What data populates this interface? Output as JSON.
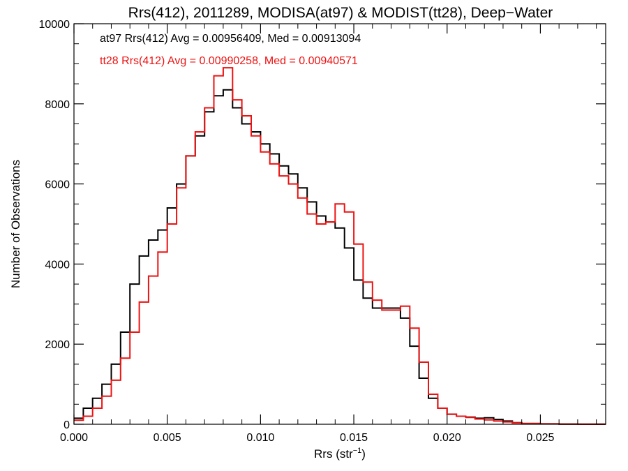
{
  "chart_data": {
    "type": "line",
    "title": "Rrs(412), 2011289, MODISA(at97) & MODIST(tt28), Deep−Water",
    "xlabel": "Rrs (str",
    "xlabel_sup": "−1",
    "xlabel_end": ")",
    "ylabel": "Number of Observations",
    "xlim": [
      0.0,
      0.0285
    ],
    "ylim": [
      0,
      10000
    ],
    "xticks": [
      0.0,
      0.005,
      0.01,
      0.015,
      0.02,
      0.025
    ],
    "xtick_labels": [
      "0.000",
      "0.005",
      "0.010",
      "0.015",
      "0.020",
      "0.025"
    ],
    "yticks": [
      0,
      2000,
      4000,
      6000,
      8000,
      10000
    ],
    "ytick_labels": [
      "0",
      "2000",
      "4000",
      "6000",
      "8000",
      "10000"
    ],
    "grid": false,
    "step": true,
    "colors": {
      "axis": "#000000",
      "at97": "#000000",
      "tt28": "#ee1111"
    },
    "annotations": [
      {
        "text": "at97 Rrs(412) Avg = 0.00956409, Med = 0.00913094",
        "color": "#000000"
      },
      {
        "text": "tt28 Rrs(412) Avg = 0.00990258, Med = 0.00940571",
        "color": "#ee1111"
      }
    ],
    "series": [
      {
        "id": "at97",
        "color": "#000000",
        "x": [
          0.0,
          0.0005,
          0.001,
          0.0015,
          0.002,
          0.0025,
          0.003,
          0.0035,
          0.004,
          0.0045,
          0.005,
          0.0055,
          0.006,
          0.0065,
          0.007,
          0.0075,
          0.008,
          0.0085,
          0.009,
          0.0095,
          0.01,
          0.0105,
          0.011,
          0.0115,
          0.012,
          0.0125,
          0.013,
          0.0135,
          0.014,
          0.0145,
          0.015,
          0.0155,
          0.016,
          0.0165,
          0.017,
          0.0175,
          0.018,
          0.0185,
          0.019,
          0.0195,
          0.02,
          0.0205,
          0.021,
          0.0215,
          0.022,
          0.0225,
          0.023,
          0.0235,
          0.024,
          0.025,
          0.026,
          0.027,
          0.0285
        ],
        "y": [
          150,
          400,
          650,
          1000,
          1500,
          2300,
          3500,
          4200,
          4600,
          4850,
          5400,
          6000,
          6700,
          7200,
          7800,
          8200,
          8350,
          7900,
          7500,
          7300,
          7000,
          6750,
          6450,
          6250,
          5900,
          5550,
          5200,
          5050,
          4900,
          4400,
          3600,
          3150,
          2900,
          2900,
          2900,
          2650,
          1950,
          1150,
          650,
          400,
          250,
          200,
          180,
          150,
          160,
          120,
          80,
          40,
          20,
          10,
          5,
          2,
          0
        ]
      },
      {
        "id": "tt28",
        "color": "#ee1111",
        "x": [
          0.0,
          0.0005,
          0.001,
          0.0015,
          0.002,
          0.0025,
          0.003,
          0.0035,
          0.004,
          0.0045,
          0.005,
          0.0055,
          0.006,
          0.0065,
          0.007,
          0.0075,
          0.008,
          0.0085,
          0.009,
          0.0095,
          0.01,
          0.0105,
          0.011,
          0.0115,
          0.012,
          0.0125,
          0.013,
          0.0135,
          0.014,
          0.0145,
          0.015,
          0.0155,
          0.016,
          0.0165,
          0.017,
          0.0175,
          0.018,
          0.0185,
          0.019,
          0.0195,
          0.02,
          0.0205,
          0.021,
          0.0215,
          0.022,
          0.0225,
          0.023,
          0.0235,
          0.024,
          0.025,
          0.026,
          0.027,
          0.0285
        ],
        "y": [
          100,
          200,
          400,
          700,
          1100,
          1650,
          2300,
          3050,
          3700,
          4300,
          5000,
          5900,
          6700,
          7300,
          7900,
          8700,
          8900,
          8100,
          7700,
          7200,
          6800,
          6500,
          6200,
          6000,
          5650,
          5250,
          5000,
          5050,
          5500,
          5300,
          4500,
          3550,
          3100,
          2850,
          2850,
          2950,
          2400,
          1550,
          750,
          400,
          250,
          200,
          170,
          130,
          110,
          80,
          60,
          35,
          20,
          10,
          5,
          2,
          0
        ]
      }
    ]
  }
}
